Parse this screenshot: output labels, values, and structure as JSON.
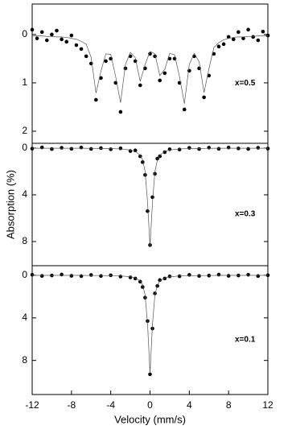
{
  "chart_data": [
    {
      "type": "scatter",
      "annotation": "x=0.5",
      "x": [
        -12,
        -11.5,
        -11,
        -10.5,
        -10,
        -9.5,
        -9,
        -8.5,
        -8,
        -7.5,
        -7,
        -6.5,
        -6,
        -5.5,
        -5,
        -4.5,
        -4,
        -3.5,
        -3,
        -2.5,
        -2,
        -1.5,
        -1,
        -0.5,
        0,
        0.5,
        1,
        1.5,
        2,
        2.5,
        3,
        3.5,
        4,
        4.5,
        5,
        5.5,
        6,
        6.5,
        7,
        7.5,
        8,
        8.5,
        9,
        9.5,
        10,
        10.5,
        11,
        11.5,
        12
      ],
      "series": [
        {
          "mark": "dot",
          "color": "#000000",
          "values": [
            -0.1,
            0.08,
            -0.05,
            0.12,
            0.0,
            -0.08,
            0.1,
            0.15,
            0.02,
            0.22,
            0.3,
            0.45,
            0.6,
            1.35,
            0.9,
            0.55,
            0.5,
            1.0,
            1.6,
            0.7,
            0.45,
            0.55,
            1.05,
            0.7,
            0.4,
            0.45,
            0.95,
            0.8,
            0.5,
            0.5,
            1.0,
            1.55,
            0.75,
            0.45,
            0.7,
            1.3,
            0.85,
            0.4,
            0.25,
            0.2,
            0.05,
            0.1,
            -0.05,
            0.08,
            -0.1,
            0.05,
            0.12,
            -0.06,
            0.02
          ]
        },
        {
          "mark": "line",
          "color": "#555555",
          "values": [
            0.03,
            0.03,
            0.03,
            0.04,
            0.04,
            0.05,
            0.05,
            0.06,
            0.08,
            0.1,
            0.14,
            0.2,
            0.47,
            1.21,
            0.76,
            0.4,
            0.41,
            0.87,
            1.41,
            0.62,
            0.37,
            0.48,
            0.97,
            0.62,
            0.35,
            0.4,
            0.85,
            0.72,
            0.39,
            0.42,
            0.87,
            1.43,
            0.62,
            0.39,
            0.56,
            1.2,
            0.71,
            0.27,
            0.17,
            0.11,
            0.08,
            0.06,
            0.05,
            0.05,
            0.04,
            0.04,
            0.03,
            0.03,
            0.03
          ]
        }
      ],
      "xlim": [
        -12,
        12
      ],
      "ylim": [
        2.25,
        -0.63
      ],
      "yticks": [
        0,
        1,
        2
      ]
    },
    {
      "type": "scatter",
      "annotation": "x=0.3",
      "ylabel": "Absorption (%)",
      "x": [
        -12,
        -11,
        -10,
        -9,
        -8,
        -7,
        -6,
        -5,
        -4,
        -3,
        -2,
        -1.5,
        -1,
        -0.75,
        -0.5,
        -0.25,
        0,
        0.25,
        0.5,
        0.75,
        1,
        1.5,
        2,
        3,
        4,
        5,
        6,
        7,
        8,
        9,
        10,
        11,
        12
      ],
      "series": [
        {
          "mark": "dot",
          "color": "#000000",
          "values": [
            0.05,
            -0.06,
            0.08,
            -0.03,
            0.06,
            -0.05,
            0.07,
            0.0,
            0.1,
            0.02,
            0.25,
            0.2,
            0.7,
            1.2,
            2.3,
            5.4,
            8.3,
            4.2,
            2.2,
            0.9,
            0.7,
            0.35,
            0.1,
            0.12,
            -0.02,
            0.08,
            -0.04,
            0.06,
            -0.05,
            0.03,
            0.07,
            -0.03,
            0.04
          ]
        },
        {
          "mark": "line",
          "color": "#555555",
          "values": [
            0.01,
            0.01,
            0.01,
            0.01,
            0.01,
            0.01,
            0.02,
            0.03,
            0.04,
            0.07,
            0.16,
            0.28,
            0.61,
            1.03,
            2.0,
            4.67,
            8.4,
            4.67,
            2.0,
            1.03,
            0.61,
            0.28,
            0.16,
            0.07,
            0.04,
            0.03,
            0.02,
            0.01,
            0.01,
            0.01,
            0.01,
            0.01,
            0.01
          ]
        }
      ],
      "xlim": [
        -12,
        12
      ],
      "ylim": [
        10.07,
        -0.41
      ],
      "yticks": [
        0,
        4,
        8
      ]
    },
    {
      "type": "scatter",
      "annotation": "x=0.1",
      "xlabel": "Velocity (mm/s)",
      "x": [
        -12,
        -11,
        -10,
        -9,
        -8,
        -7,
        -6,
        -5,
        -4,
        -3,
        -2,
        -1.5,
        -1,
        -0.75,
        -0.5,
        -0.25,
        0,
        0.25,
        0.5,
        0.75,
        1,
        1.5,
        2,
        3,
        4,
        5,
        6,
        7,
        8,
        9,
        10,
        11,
        12
      ],
      "series": [
        {
          "mark": "dot",
          "color": "#000000",
          "values": [
            -0.05,
            0.06,
            0.02,
            -0.07,
            0.05,
            0.08,
            -0.03,
            0.07,
            0.0,
            0.12,
            0.2,
            0.3,
            0.6,
            1.1,
            2.1,
            4.3,
            9.3,
            5.0,
            1.7,
            1.0,
            0.45,
            0.3,
            0.1,
            0.09,
            -0.04,
            0.06,
            0.03,
            -0.06,
            0.05,
            0.02,
            -0.05,
            0.07,
            0.0
          ]
        },
        {
          "mark": "line",
          "color": "#555555",
          "values": [
            0.01,
            0.01,
            0.01,
            0.01,
            0.01,
            0.01,
            0.02,
            0.02,
            0.04,
            0.06,
            0.14,
            0.25,
            0.54,
            0.92,
            1.84,
            4.6,
            9.2,
            4.6,
            1.84,
            0.92,
            0.54,
            0.25,
            0.14,
            0.06,
            0.04,
            0.02,
            0.02,
            0.01,
            0.01,
            0.01,
            0.01,
            0.01,
            0.01
          ]
        }
      ],
      "xlim": [
        -12,
        12
      ],
      "ylim": [
        11.2,
        -0.9
      ],
      "yticks": [
        0,
        4,
        8
      ],
      "xticks": [
        -12,
        -8,
        -4,
        0,
        4,
        8,
        12
      ]
    }
  ]
}
